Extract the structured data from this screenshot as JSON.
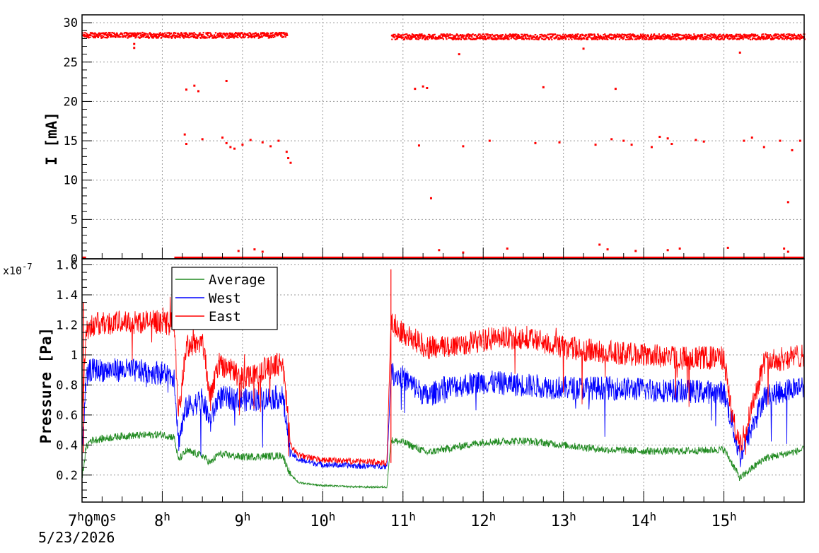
{
  "chart_data": [
    {
      "type": "scatter",
      "name": "current",
      "ylabel": "I [mA]",
      "ylim": [
        0,
        31
      ],
      "yticks": [
        0,
        5,
        10,
        15,
        20,
        25,
        30
      ],
      "xlim_hours": [
        7.0,
        16.0
      ],
      "grid": true,
      "color": "#ff0000",
      "segments": [
        {
          "x_start": 7.0,
          "x_end": 9.55,
          "y": 28.5
        },
        {
          "x_start": 10.85,
          "x_end": 16.0,
          "y": 28.3
        }
      ],
      "outliers": [
        {
          "x": 7.65,
          "y": 26.8
        },
        {
          "x": 7.65,
          "y": 27.3
        },
        {
          "x": 8.3,
          "y": 21.5
        },
        {
          "x": 8.4,
          "y": 22.0
        },
        {
          "x": 8.45,
          "y": 21.3
        },
        {
          "x": 8.8,
          "y": 22.6
        },
        {
          "x": 8.28,
          "y": 15.8
        },
        {
          "x": 8.3,
          "y": 14.6
        },
        {
          "x": 8.5,
          "y": 15.2
        },
        {
          "x": 8.75,
          "y": 15.4
        },
        {
          "x": 8.8,
          "y": 14.7
        },
        {
          "x": 8.85,
          "y": 14.2
        },
        {
          "x": 8.9,
          "y": 14.0
        },
        {
          "x": 9.0,
          "y": 14.5
        },
        {
          "x": 9.1,
          "y": 15.1
        },
        {
          "x": 9.25,
          "y": 14.8
        },
        {
          "x": 9.35,
          "y": 14.3
        },
        {
          "x": 9.45,
          "y": 15.0
        },
        {
          "x": 9.55,
          "y": 13.6
        },
        {
          "x": 9.57,
          "y": 12.8
        },
        {
          "x": 9.6,
          "y": 12.2
        },
        {
          "x": 11.15,
          "y": 21.6
        },
        {
          "x": 11.25,
          "y": 21.9
        },
        {
          "x": 11.3,
          "y": 21.7
        },
        {
          "x": 11.2,
          "y": 14.4
        },
        {
          "x": 11.35,
          "y": 7.7
        },
        {
          "x": 11.7,
          "y": 26.0
        },
        {
          "x": 11.75,
          "y": 14.3
        },
        {
          "x": 12.08,
          "y": 15.0
        },
        {
          "x": 12.75,
          "y": 21.8
        },
        {
          "x": 12.65,
          "y": 14.7
        },
        {
          "x": 12.95,
          "y": 14.8
        },
        {
          "x": 13.25,
          "y": 26.7
        },
        {
          "x": 13.4,
          "y": 14.5
        },
        {
          "x": 13.6,
          "y": 15.2
        },
        {
          "x": 13.65,
          "y": 21.6
        },
        {
          "x": 13.75,
          "y": 15.0
        },
        {
          "x": 13.85,
          "y": 14.5
        },
        {
          "x": 14.1,
          "y": 14.2
        },
        {
          "x": 14.2,
          "y": 15.5
        },
        {
          "x": 14.3,
          "y": 15.3
        },
        {
          "x": 14.35,
          "y": 14.6
        },
        {
          "x": 14.65,
          "y": 15.1
        },
        {
          "x": 14.75,
          "y": 14.9
        },
        {
          "x": 15.2,
          "y": 26.2
        },
        {
          "x": 15.25,
          "y": 15.0
        },
        {
          "x": 15.35,
          "y": 15.4
        },
        {
          "x": 15.5,
          "y": 14.2
        },
        {
          "x": 15.7,
          "y": 15.0
        },
        {
          "x": 15.85,
          "y": 13.8
        },
        {
          "x": 15.95,
          "y": 15.0
        },
        {
          "x": 15.8,
          "y": 7.2
        },
        {
          "x": 8.95,
          "y": 1.0
        },
        {
          "x": 9.15,
          "y": 1.2
        },
        {
          "x": 9.25,
          "y": 0.9
        },
        {
          "x": 11.45,
          "y": 1.1
        },
        {
          "x": 11.75,
          "y": 0.8
        },
        {
          "x": 12.3,
          "y": 1.3
        },
        {
          "x": 13.45,
          "y": 1.8
        },
        {
          "x": 13.55,
          "y": 1.2
        },
        {
          "x": 13.9,
          "y": 1.0
        },
        {
          "x": 14.3,
          "y": 1.1
        },
        {
          "x": 14.45,
          "y": 1.3
        },
        {
          "x": 15.05,
          "y": 1.4
        },
        {
          "x": 15.75,
          "y": 1.3
        },
        {
          "x": 15.8,
          "y": 0.9
        }
      ]
    },
    {
      "type": "line",
      "name": "pressure",
      "ylabel": "Pressure [Pa]",
      "y_multiplier_label": "x10",
      "y_multiplier_exp": "-7",
      "ylim": [
        0.02,
        1.64
      ],
      "yticks": [
        0.2,
        0.4,
        0.6,
        0.8,
        1.0,
        1.2,
        1.4,
        1.6
      ],
      "ytick_labels": [
        "0.2",
        "0.4",
        "0.6",
        "0.8",
        "1",
        "1.2",
        "1.4",
        "1.6"
      ],
      "grid": true,
      "legend": {
        "placement": "top-left",
        "entries": [
          "Average",
          "West",
          "East"
        ]
      },
      "series": [
        {
          "name": "Average",
          "color": "#228b22",
          "x": [
            7.0,
            7.05,
            7.1,
            7.5,
            8.0,
            8.15,
            8.2,
            8.3,
            8.5,
            8.6,
            8.7,
            9.0,
            9.5,
            9.6,
            9.7,
            10.0,
            10.5,
            10.8,
            10.85,
            11.0,
            11.3,
            11.5,
            12.0,
            12.5,
            13.0,
            13.5,
            14.0,
            14.5,
            15.0,
            15.1,
            15.2,
            15.5,
            16.0
          ],
          "y": [
            0.18,
            0.38,
            0.43,
            0.46,
            0.47,
            0.45,
            0.3,
            0.36,
            0.33,
            0.28,
            0.34,
            0.32,
            0.33,
            0.2,
            0.15,
            0.13,
            0.12,
            0.12,
            0.43,
            0.42,
            0.35,
            0.37,
            0.42,
            0.43,
            0.4,
            0.37,
            0.36,
            0.36,
            0.37,
            0.28,
            0.18,
            0.31,
            0.37
          ]
        },
        {
          "name": "West",
          "color": "#0000ff",
          "x": [
            7.0,
            7.05,
            7.1,
            7.5,
            8.0,
            8.15,
            8.2,
            8.3,
            8.5,
            8.6,
            8.7,
            9.0,
            9.5,
            9.6,
            9.7,
            10.0,
            10.5,
            10.8,
            10.85,
            11.0,
            11.3,
            11.5,
            12.0,
            12.5,
            13.0,
            13.5,
            14.0,
            14.5,
            15.0,
            15.1,
            15.2,
            15.5,
            16.0
          ],
          "y": [
            0.4,
            0.82,
            0.9,
            0.9,
            0.88,
            0.86,
            0.42,
            0.65,
            0.7,
            0.55,
            0.72,
            0.7,
            0.72,
            0.35,
            0.3,
            0.27,
            0.26,
            0.26,
            0.88,
            0.85,
            0.72,
            0.78,
            0.82,
            0.8,
            0.78,
            0.78,
            0.77,
            0.76,
            0.75,
            0.55,
            0.32,
            0.72,
            0.8
          ]
        },
        {
          "name": "East",
          "color": "#ff0000",
          "x": [
            7.0,
            7.05,
            7.1,
            7.5,
            8.0,
            8.15,
            8.2,
            8.3,
            8.5,
            8.6,
            8.7,
            9.0,
            9.5,
            9.6,
            9.7,
            10.0,
            10.5,
            10.8,
            10.85,
            11.0,
            11.3,
            11.5,
            12.0,
            12.5,
            13.0,
            13.5,
            14.0,
            14.5,
            15.0,
            15.1,
            15.2,
            15.5,
            16.0
          ],
          "y": [
            0.6,
            1.15,
            1.2,
            1.22,
            1.22,
            1.2,
            0.6,
            1.05,
            1.1,
            0.7,
            0.95,
            0.85,
            0.95,
            0.4,
            0.33,
            0.3,
            0.29,
            0.28,
            1.22,
            1.15,
            1.05,
            1.05,
            1.1,
            1.12,
            1.05,
            1.02,
            1.0,
            0.98,
            0.98,
            0.6,
            0.38,
            0.95,
            1.0
          ]
        }
      ]
    }
  ],
  "x_axis": {
    "ticks": [
      7,
      8,
      9,
      10,
      11,
      12,
      13,
      14,
      15
    ],
    "tick_labels": [
      {
        "num": "7",
        "parts": [
          [
            "h",
            "0"
          ],
          [
            "m",
            "0"
          ],
          [
            "s",
            ""
          ]
        ]
      },
      {
        "num": "8",
        "parts": [
          [
            "h",
            ""
          ]
        ]
      },
      {
        "num": "9",
        "parts": [
          [
            "h",
            ""
          ]
        ]
      },
      {
        "num": "10",
        "parts": [
          [
            "h",
            ""
          ]
        ]
      },
      {
        "num": "11",
        "parts": [
          [
            "h",
            ""
          ]
        ]
      },
      {
        "num": "12",
        "parts": [
          [
            "h",
            ""
          ]
        ]
      },
      {
        "num": "13",
        "parts": [
          [
            "h",
            ""
          ]
        ]
      },
      {
        "num": "14",
        "parts": [
          [
            "h",
            ""
          ]
        ]
      },
      {
        "num": "15",
        "parts": [
          [
            "h",
            ""
          ]
        ]
      }
    ],
    "date": "5/23/2026"
  }
}
